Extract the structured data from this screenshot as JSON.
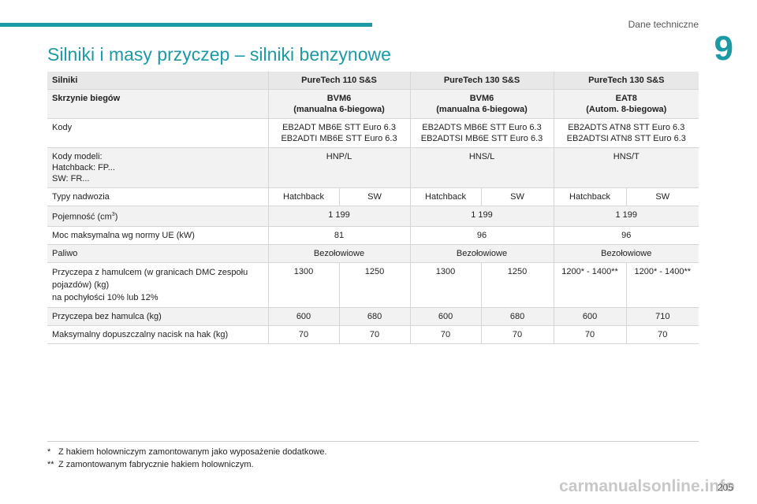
{
  "header": {
    "section_title": "Dane techniczne",
    "chapter_number": "9"
  },
  "page_title": "Silniki i masy przyczep – silniki benzynowe",
  "table": {
    "header_label": "Silniki",
    "engines": [
      "PureTech 110 S&S",
      "PureTech 130 S&S",
      "PureTech 130 S&S"
    ],
    "gearbox_label": "Skrzynie biegów",
    "gearboxes": [
      {
        "code": "BVM6",
        "desc": "(manualna 6-biegowa)"
      },
      {
        "code": "BVM6",
        "desc": "(manualna 6-biegowa)"
      },
      {
        "code": "EAT8",
        "desc": "(Autom. 8-biegowa)"
      }
    ],
    "codes_label": "Kody",
    "codes": [
      {
        "line1": "EB2ADT MB6E STT Euro 6.3",
        "line2": "EB2ADTI MB6E STT Euro 6.3"
      },
      {
        "line1": "EB2ADTS MB6E STT Euro 6.3",
        "line2": "EB2ADTSI MB6E STT Euro 6.3"
      },
      {
        "line1": "EB2ADTS ATN8 STT Euro 6.3",
        "line2": "EB2ADTSI ATN8 STT Euro 6.3"
      }
    ],
    "model_codes_label": {
      "line1": "Kody modeli:",
      "line2": "Hatchback: FP...",
      "line3": "SW: FR..."
    },
    "model_codes": [
      "HNP/L",
      "HNS/L",
      "HNS/T"
    ],
    "body_types_label": "Typy nadwozia",
    "body_types": [
      "Hatchback",
      "SW",
      "Hatchback",
      "SW",
      "Hatchback",
      "SW"
    ],
    "capacity_label": "Pojemność (cm",
    "capacity_sup": "3",
    "capacity_label_end": ")",
    "capacity": [
      "1 199",
      "1 199",
      "1 199"
    ],
    "power_label": "Moc maksymalna wg normy UE (kW)",
    "power": [
      "81",
      "96",
      "96"
    ],
    "fuel_label": "Paliwo",
    "fuel": [
      "Bezołowiowe",
      "Bezołowiowe",
      "Bezołowiowe"
    ],
    "braked_label": {
      "line1": "Przyczepa z hamulcem (w granicach DMC zespołu",
      "line2": "pojazdów) (kg)",
      "line3": "na pochyłości 10% lub 12%"
    },
    "braked": [
      "1300",
      "1250",
      "1300",
      "1250",
      "1200* - 1400**",
      "1200* - 1400**"
    ],
    "unbraked_label": "Przyczepa bez hamulca (kg)",
    "unbraked": [
      "600",
      "680",
      "600",
      "680",
      "600",
      "710"
    ],
    "hitch_label": "Maksymalny dopuszczalny nacisk na hak (kg)",
    "hitch": [
      "70",
      "70",
      "70",
      "70",
      "70",
      "70"
    ]
  },
  "footnotes": [
    {
      "mark": "*",
      "text": "Z hakiem holowniczym zamontowanym jako wyposażenie dodatkowe."
    },
    {
      "mark": "**",
      "text": "Z zamontowanym fabrycznie hakiem holowniczym."
    }
  ],
  "page_number": "205",
  "watermark": "carmanualsonline.info"
}
